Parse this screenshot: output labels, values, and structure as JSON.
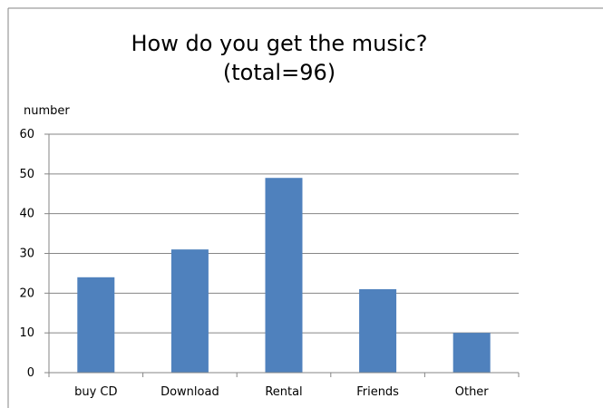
{
  "chart_data": {
    "type": "bar",
    "title": "How do you get the music?",
    "subtitle": "(total=96)",
    "ylabel": "number",
    "xlabel": "",
    "categories": [
      "buy CD",
      "Download",
      "Rental",
      "Friends",
      "Other"
    ],
    "values": [
      24,
      31,
      49,
      21,
      10
    ],
    "ylim": [
      0,
      60
    ],
    "yticks": [
      "0",
      "10",
      "20",
      "30",
      "40",
      "50",
      "60"
    ],
    "grid": true,
    "legend": "none",
    "colors": {
      "bar": "#4f81bd",
      "grid": "#868686",
      "axis": "#868686",
      "frame": "#868686"
    }
  }
}
